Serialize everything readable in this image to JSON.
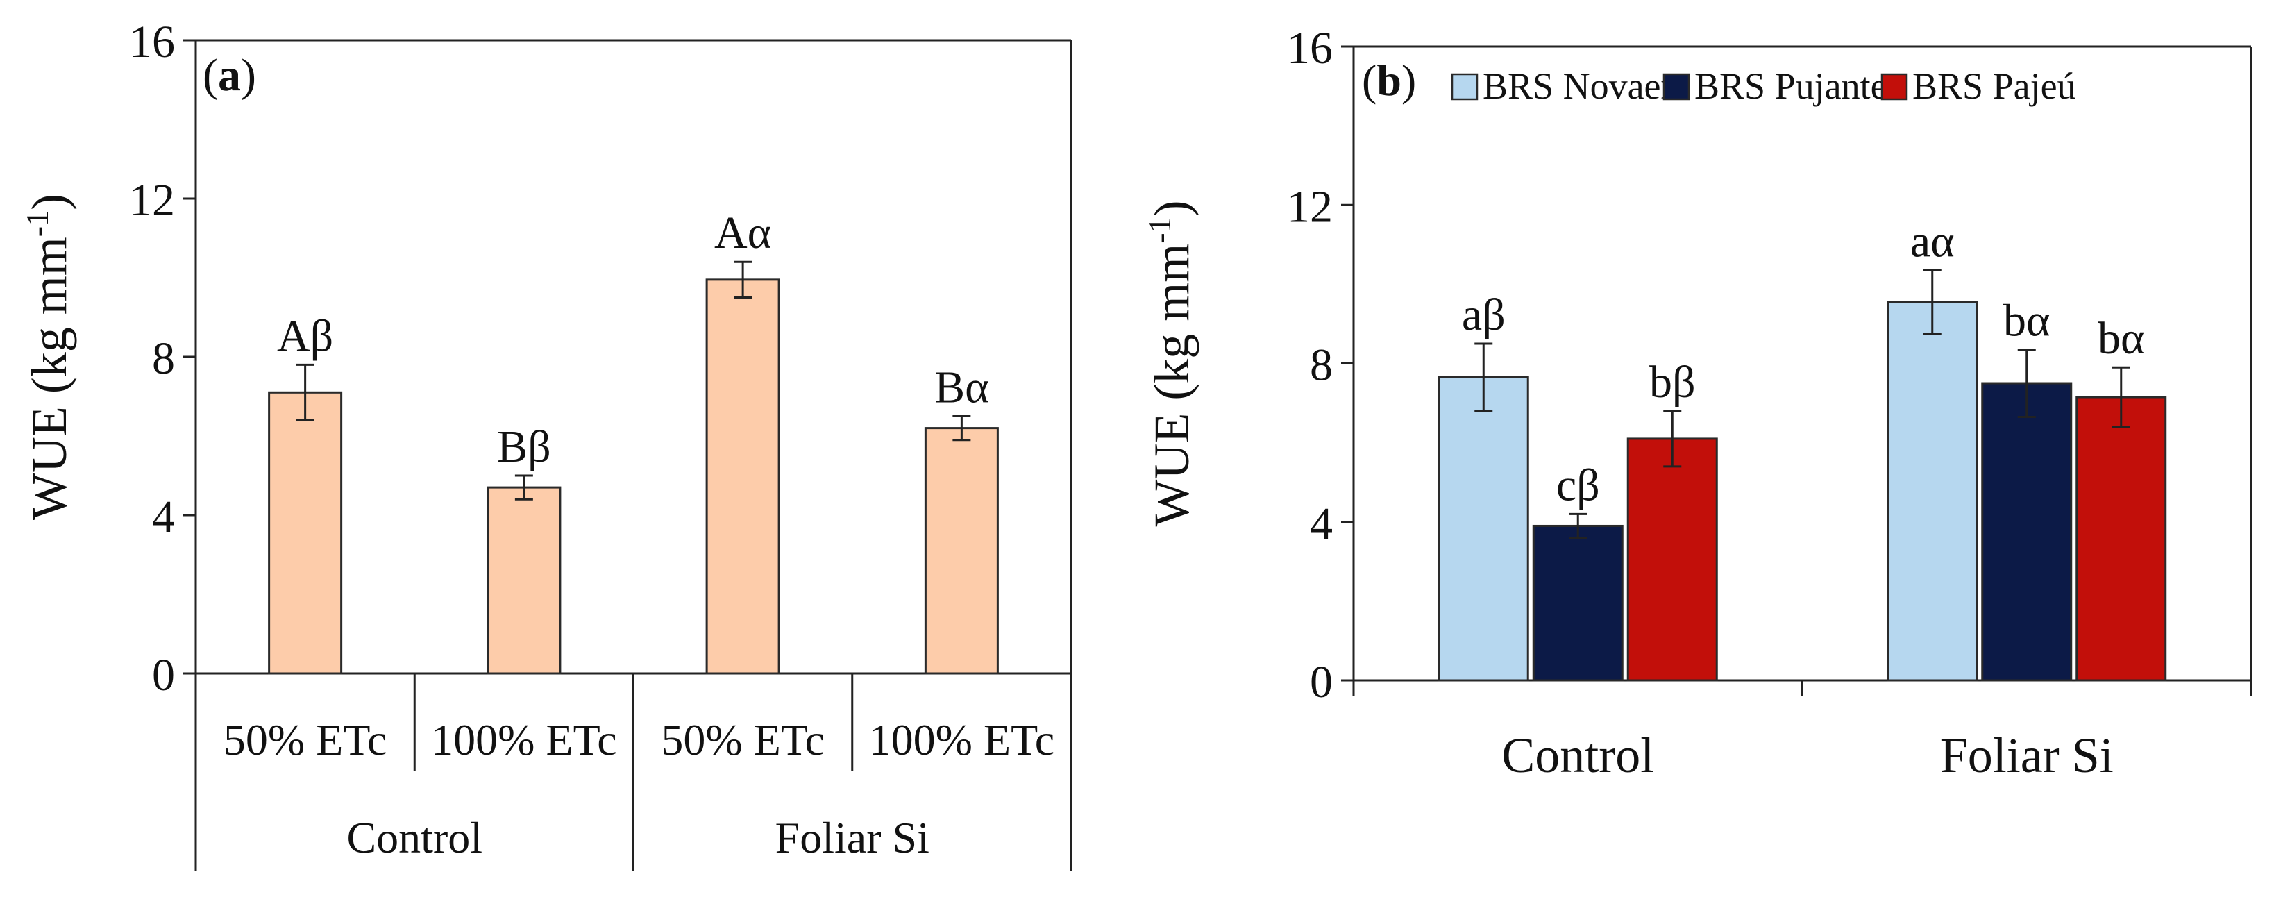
{
  "chart_data": [
    {
      "type": "bar",
      "panel_label": "(a)",
      "ylabel": "WUE (kg mm",
      "ylabel_sup": "-1",
      "ylabel_close": ")",
      "ylim": [
        0,
        16
      ],
      "yticks": [
        "0",
        "4",
        "8",
        "12",
        "16"
      ],
      "categories": [
        "50% ETc",
        "100% ETc",
        "50% ETc",
        "100% ETc"
      ],
      "groups": [
        "Control",
        "Foliar Si"
      ],
      "values": [
        7.1,
        4.7,
        9.95,
        6.2
      ],
      "errors": [
        0.7,
        0.3,
        0.45,
        0.3
      ],
      "bar_labels": [
        "Aβ",
        "Bβ",
        "Aα",
        "Bα"
      ],
      "color": "#fdccaa"
    },
    {
      "type": "bar",
      "panel_label": "(b)",
      "ylabel": "WUE (kg mm",
      "ylabel_sup": "-1",
      "ylabel_close": ")",
      "ylim": [
        0,
        16
      ],
      "yticks": [
        "0",
        "4",
        "8",
        "12",
        "16"
      ],
      "categories": [
        "Control",
        "Foliar Si"
      ],
      "legend_position": "top",
      "series": [
        {
          "name": "BRS Novaera",
          "color": "#b6d7ef",
          "values": [
            7.65,
            9.55
          ],
          "errors": [
            0.85,
            0.8
          ],
          "labels": [
            "aβ",
            "aα"
          ]
        },
        {
          "name": "BRS Pujante",
          "color": "#0c1a47",
          "values": [
            3.9,
            7.5
          ],
          "errors": [
            0.3,
            0.85
          ],
          "labels": [
            "cβ",
            "bα"
          ]
        },
        {
          "name": "BRS Pajeú",
          "color": "#c20f0a",
          "values": [
            6.1,
            7.15
          ],
          "errors": [
            0.7,
            0.75
          ],
          "labels": [
            "bβ",
            "bα"
          ]
        }
      ]
    }
  ]
}
